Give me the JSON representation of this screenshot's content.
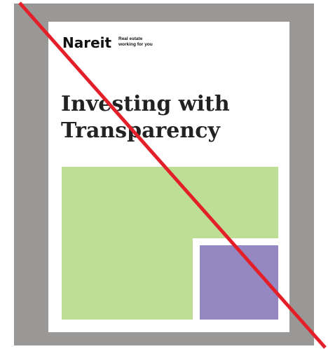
{
  "brand": {
    "name": "Nareit",
    "tagline_1": "Real estate",
    "tagline_2": "working for you"
  },
  "document": {
    "title_1": "Investing with",
    "title_2": "Transparency"
  }
}
